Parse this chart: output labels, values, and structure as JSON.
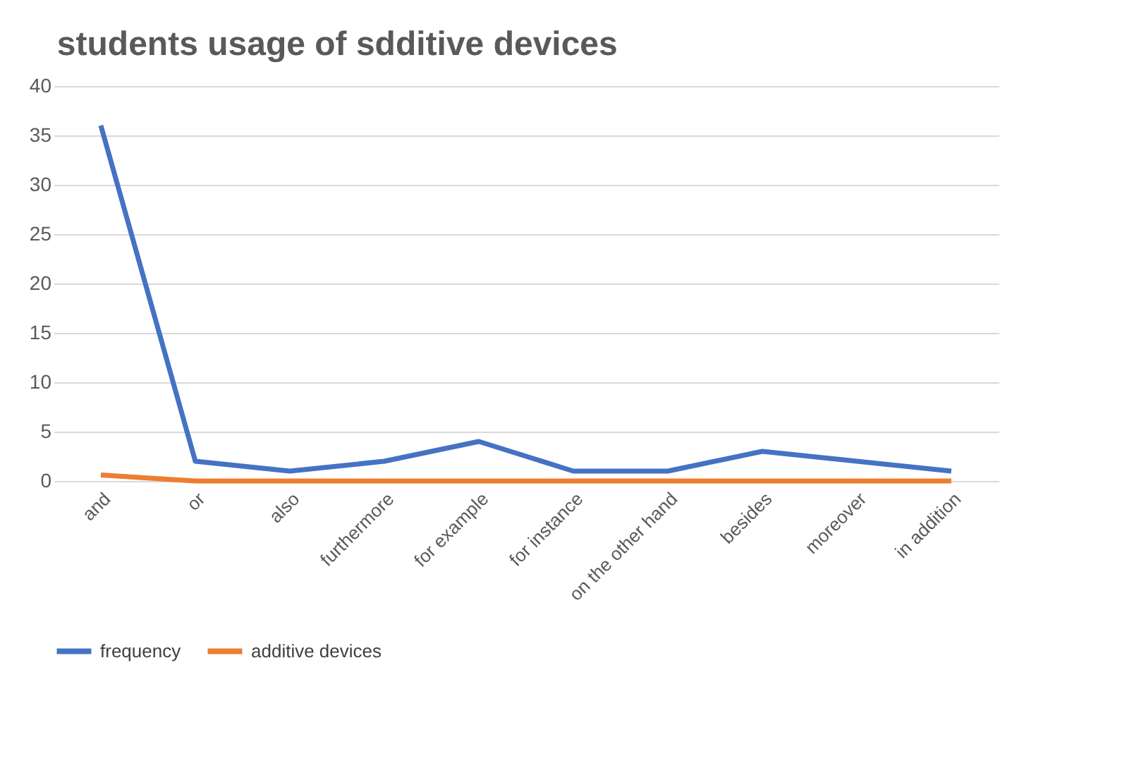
{
  "chart_data": {
    "type": "line",
    "title": "students usage of sdditive devices",
    "categories": [
      "and",
      "or",
      "also",
      "furthermore",
      "for example",
      "for instance",
      "on the other hand",
      "besides",
      "moreover",
      "in addition"
    ],
    "series": [
      {
        "name": "frequency",
        "color": "#4472c4",
        "values": [
          36,
          2,
          1,
          2,
          4,
          1,
          1,
          3,
          2,
          1
        ]
      },
      {
        "name": "additive devices",
        "color": "#ed7d31",
        "values": [
          0.6,
          0,
          0,
          0,
          0,
          0,
          0,
          0,
          0,
          0
        ]
      }
    ],
    "ylim": [
      0,
      40
    ],
    "yticks": [
      0,
      5,
      10,
      15,
      20,
      25,
      30,
      35,
      40
    ],
    "grid": "y",
    "legend": "bottom",
    "marker": "none",
    "line_style": "solid"
  }
}
